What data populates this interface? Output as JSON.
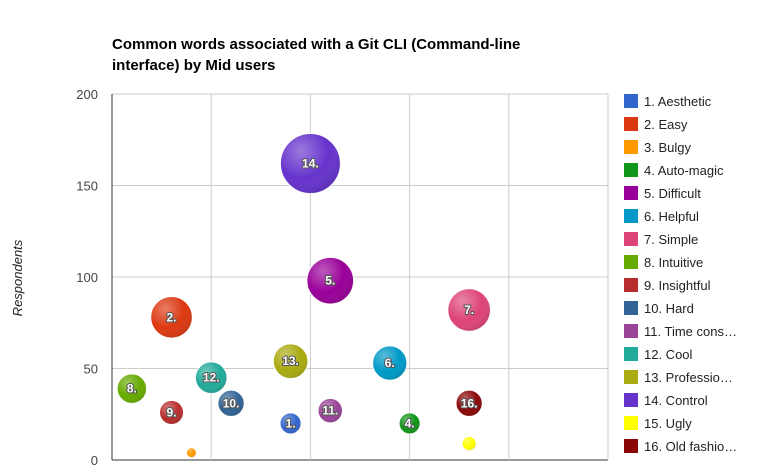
{
  "chart_data": {
    "type": "bubble",
    "title": "Common words associated with a Git CLI (Command-line interface) by Mid users",
    "xlabel": "",
    "ylabel": "Respondents",
    "ylim": [
      0,
      200
    ],
    "yticks": [
      0,
      50,
      100,
      150,
      200
    ],
    "xlim": [
      0,
      5
    ],
    "x_gridlines": [
      1,
      2,
      3,
      4
    ],
    "grid": true,
    "legend_position": "right",
    "points": [
      {
        "label": "1.",
        "legend": "1. Aesthetic",
        "x": 1.8,
        "y": 20,
        "size": 20,
        "color": "#3366cc"
      },
      {
        "label": "2.",
        "legend": "2. Easy",
        "x": 0.6,
        "y": 78,
        "size": 78,
        "color": "#dc3912"
      },
      {
        "label": "3.",
        "legend": "3. Bulgy",
        "x": 0.8,
        "y": 4,
        "size": 4,
        "color": "#ff9900"
      },
      {
        "label": "4.",
        "legend": "4. Auto-magic",
        "x": 3.0,
        "y": 20,
        "size": 20,
        "color": "#109618"
      },
      {
        "label": "5.",
        "legend": "5. Difficult",
        "x": 2.2,
        "y": 98,
        "size": 98,
        "color": "#990099"
      },
      {
        "label": "6.",
        "legend": "6. Helpful",
        "x": 2.8,
        "y": 53,
        "size": 53,
        "color": "#0099c6"
      },
      {
        "label": "7.",
        "legend": "7. Simple",
        "x": 3.6,
        "y": 82,
        "size": 82,
        "color": "#dd4477"
      },
      {
        "label": "8.",
        "legend": "8. Intuitive",
        "x": 0.2,
        "y": 39,
        "size": 39,
        "color": "#66aa00"
      },
      {
        "label": "9.",
        "legend": "9. Insightful",
        "x": 0.6,
        "y": 26,
        "size": 26,
        "color": "#b82e2e"
      },
      {
        "label": "10.",
        "legend": "10. Hard",
        "x": 1.2,
        "y": 31,
        "size": 31,
        "color": "#316395"
      },
      {
        "label": "11.",
        "legend": "11. Time cons…",
        "x": 2.2,
        "y": 27,
        "size": 27,
        "color": "#994499"
      },
      {
        "label": "12.",
        "legend": "12. Cool",
        "x": 1.0,
        "y": 45,
        "size": 45,
        "color": "#22aa99"
      },
      {
        "label": "13.",
        "legend": "13. Professio…",
        "x": 1.8,
        "y": 54,
        "size": 54,
        "color": "#aaaa11"
      },
      {
        "label": "14.",
        "legend": "14. Control",
        "x": 2.0,
        "y": 162,
        "size": 162,
        "color": "#6633cc"
      },
      {
        "label": "15.",
        "legend": "15. Ugly",
        "x": 3.6,
        "y": 9,
        "size": 9,
        "color": "#ffff00"
      },
      {
        "label": "16.",
        "legend": "16. Old fashio…",
        "x": 3.6,
        "y": 31,
        "size": 31,
        "color": "#8b0707"
      }
    ]
  }
}
